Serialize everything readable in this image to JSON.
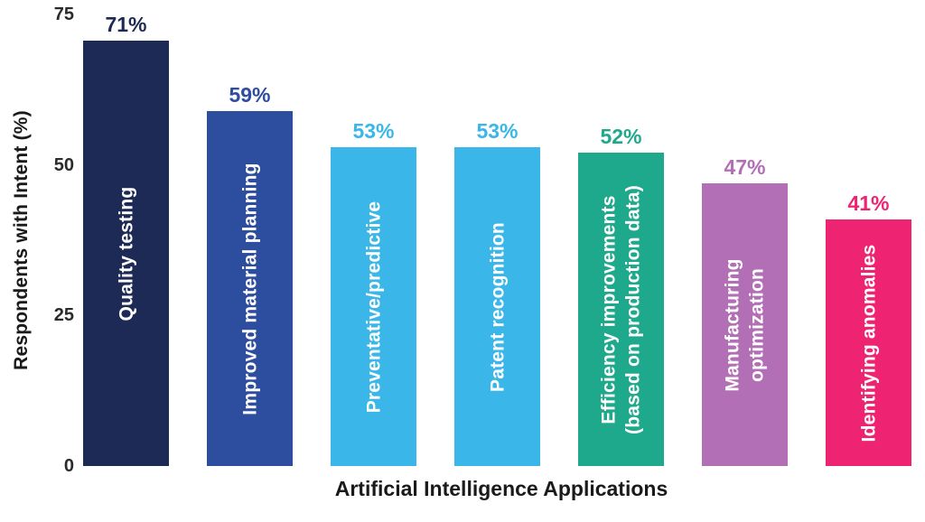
{
  "chart_data": {
    "type": "bar",
    "title": "",
    "xlabel": "Artificial Intelligence Applications",
    "ylabel": "Respondents with Intent (%)",
    "ylim": [
      0,
      75
    ],
    "yticks": [
      0,
      25,
      50,
      75
    ],
    "grid": false,
    "legend": false,
    "categories": [
      "Quality testing",
      "Improved material planning",
      "Preventative/predictive",
      "Patent recognition",
      "Efficiency improvements\n(based on production data)",
      "Manufacturing\noptimization",
      "Identifying anomalies"
    ],
    "values": [
      71,
      59,
      53,
      53,
      52,
      47,
      41
    ],
    "value_labels": [
      "71%",
      "59%",
      "53%",
      "53%",
      "52%",
      "47%",
      "41%"
    ],
    "bar_colors": [
      "#1d2a55",
      "#2d4d9e",
      "#3ab7e8",
      "#3ab7e8",
      "#1fa98c",
      "#b36fb5",
      "#ee2472"
    ],
    "bar_text_color": "#ffffff",
    "axis_text_color": "#1a1a1a"
  }
}
